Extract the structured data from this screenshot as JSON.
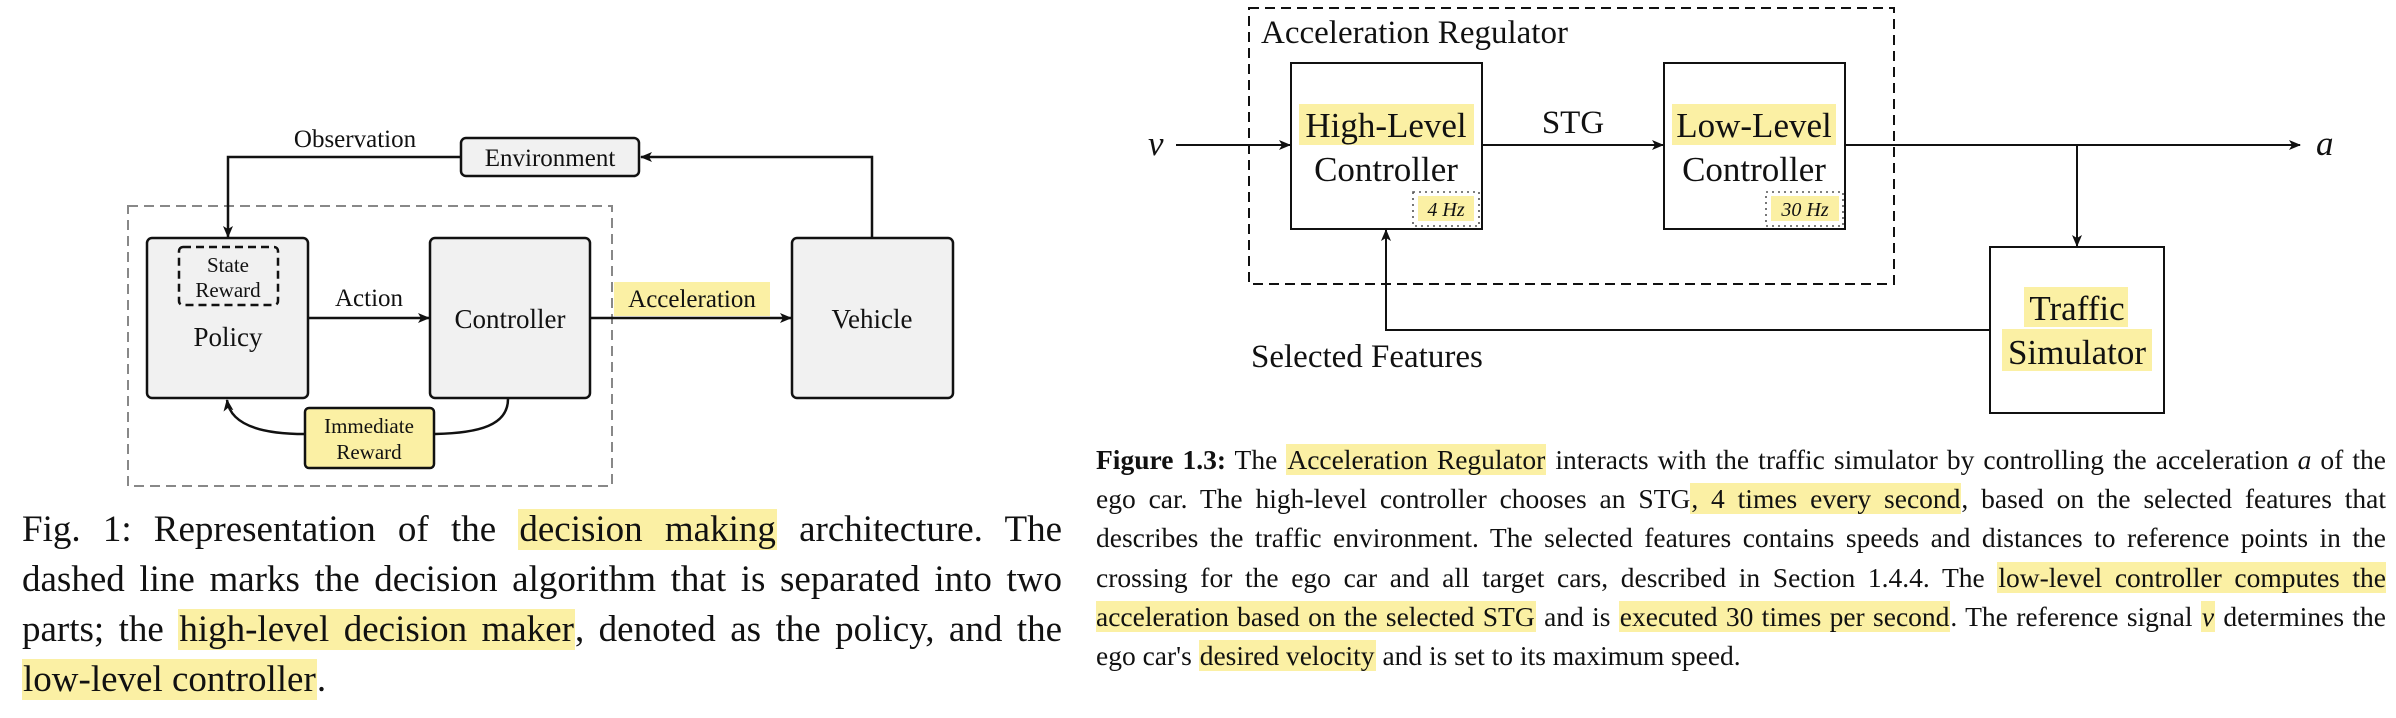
{
  "diagram_left": {
    "environment": "Environment",
    "observation": "Observation",
    "state": "State",
    "reward": "Reward",
    "policy": "Policy",
    "action": "Action",
    "controller": "Controller",
    "acceleration": "Acceleration",
    "vehicle": "Vehicle",
    "immediate": "Immediate",
    "immediate_reward": "Reward"
  },
  "caption_left": {
    "p1": "Fig. 1: Representation of the ",
    "h1": "decision making",
    "p2": " architecture. The dashed line marks the decision algorithm that is separated into two parts; the ",
    "h2": "high-level decision maker",
    "p3": ", denoted as the policy, and the ",
    "h3": "low-level controller",
    "p4": "."
  },
  "diagram_right": {
    "regulator": "Acceleration Regulator",
    "input_v": "v",
    "output_a": "a",
    "high_level_1": "High-Level",
    "high_level_2": "Controller",
    "high_rate": "4 Hz",
    "stg": "STG",
    "low_level_1": "Low-Level",
    "low_level_2": "Controller",
    "low_rate": "30 Hz",
    "traffic_1": "Traffic",
    "traffic_2": "Simulator",
    "selected": "Selected Features"
  },
  "caption_right": {
    "label": "Figure 1.3:",
    "p1": " The ",
    "h1": "Acceleration Regulator",
    "p2": " interacts with the traffic simulator by controlling the acceleration ",
    "a": "a",
    "p3": " of the ego car. The high-level controller chooses an STG",
    "h2": ", 4 times every second",
    "p4": ", based on the selected features that describes the traffic environment. The selected features contains speeds and distances to reference points in the crossing for the ego car and all target cars, described in Section 1.4.4. The ",
    "h3": "low-level controller computes the acceleration based on the selected STG",
    "p5": " and is ",
    "h4": "executed 30 times per second",
    "p6": ". The reference signal ",
    "v": "v",
    "p7": " determines the ego car's ",
    "h5": "desired velocity",
    "p8": " and is set to its maximum speed."
  },
  "colors": {
    "highlight": "#fbf0a4",
    "box_fill": "#f1f1f1"
  }
}
